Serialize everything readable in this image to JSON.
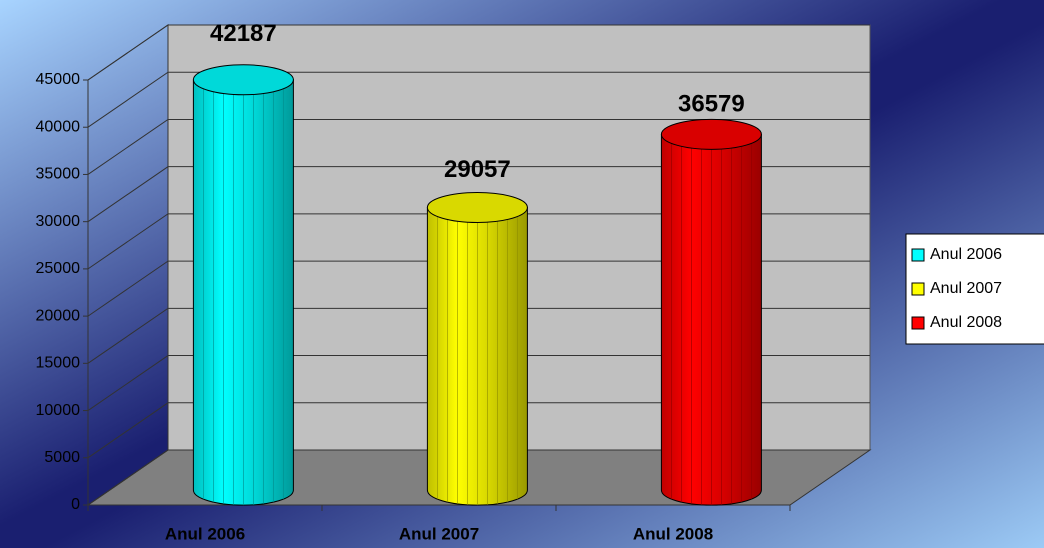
{
  "chart_data": {
    "type": "bar",
    "categories": [
      "Anul 2006",
      "Anul 2007",
      "Anul 2008"
    ],
    "values": [
      42187,
      29057,
      36579
    ],
    "colors": [
      "#00ffff",
      "#ffff00",
      "#ff0000"
    ],
    "ylim": [
      0,
      45000
    ],
    "yticks": [
      0,
      5000,
      10000,
      15000,
      20000,
      25000,
      30000,
      35000,
      40000,
      45000
    ],
    "grid": true,
    "legend": "right"
  }
}
